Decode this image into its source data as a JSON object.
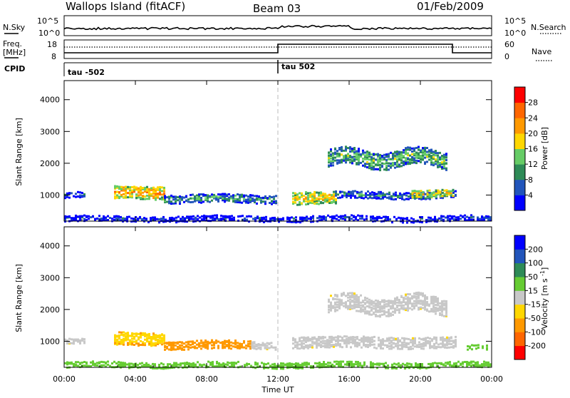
{
  "header": {
    "station": "Wallops Island (fitACF)",
    "beam": "Beam 03",
    "date": "01/Feb/2009"
  },
  "panels": {
    "nsky": {
      "left_label": "N.Sky",
      "right_label": "N.Search",
      "left_ticks": [
        "10^5",
        "10^0"
      ],
      "right_ticks": [
        "10^5",
        "10^0"
      ]
    },
    "freq": {
      "left_label_line1": "Freq.",
      "left_label_line2": "[MHz]",
      "right_label": "Nave",
      "left_ticks": [
        "18",
        "8"
      ],
      "right_ticks": [
        "60",
        "0"
      ]
    },
    "cpid": {
      "label": "CPID",
      "segments": [
        "tau -502",
        "tau 502"
      ]
    }
  },
  "colors": {
    "power_scale": [
      "#0000ff",
      "#2255bb",
      "#2e8b57",
      "#66cc66",
      "#ffd700",
      "#ff9900",
      "#ff6600",
      "#ff0000"
    ],
    "velocity_scale": [
      "#ff0000",
      "#ff6600",
      "#ff9900",
      "#ffd700",
      "#c8c8c8",
      "#66cc33",
      "#2e8b57",
      "#2255bb",
      "#0000ff"
    ],
    "ground_scatter_grey": "#c8c8c8"
  },
  "chart_data": [
    {
      "type": "heatmap",
      "title": "",
      "xlabel": "Time UT",
      "ylabel": "Slant Range [km]",
      "x_ticks": [
        "00:00",
        "04:00",
        "08:00",
        "12:00",
        "16:00",
        "20:00",
        "00:00"
      ],
      "y_ticks": [
        1000,
        2000,
        3000,
        4000
      ],
      "xlim_hours": [
        0,
        24
      ],
      "ylim_km": [
        180,
        4600
      ],
      "colorbar": {
        "label": "Power [dB]",
        "tick_labels": [
          "4",
          "8",
          "12",
          "16",
          "20",
          "24",
          "28"
        ],
        "range": [
          0,
          32
        ]
      },
      "scatter_regions": [
        {
          "t_start": 0.0,
          "t_end": 1.1,
          "range_center": 1000,
          "range_halfwidth": 80,
          "level": 8
        },
        {
          "t_start": 2.8,
          "t_end": 5.6,
          "range_center": 1100,
          "range_halfwidth": 200,
          "level": 22
        },
        {
          "t_start": 5.6,
          "t_end": 11.9,
          "range_center": 880,
          "range_halfwidth": 120,
          "level": 12
        },
        {
          "t_start": 12.8,
          "t_end": 15.2,
          "range_center": 920,
          "range_halfwidth": 200,
          "level": 20
        },
        {
          "t_start": 15.2,
          "t_end": 22.0,
          "range_center": 1000,
          "range_halfwidth": 100,
          "level": 10
        },
        {
          "t_start": 14.8,
          "t_end": 21.5,
          "range_center": 2150,
          "range_halfwidth": 250,
          "level": 14
        },
        {
          "t_start": 19.5,
          "t_end": 21.8,
          "range_center": 1050,
          "range_halfwidth": 120,
          "level": 20
        },
        {
          "t_start": 0.0,
          "t_end": 24.0,
          "range_center": 250,
          "range_halfwidth": 70,
          "level": 6
        }
      ]
    },
    {
      "type": "heatmap",
      "title": "",
      "xlabel": "Time UT",
      "ylabel": "Slant Range [km]",
      "x_ticks": [
        "00:00",
        "04:00",
        "08:00",
        "12:00",
        "16:00",
        "20:00",
        "00:00"
      ],
      "y_ticks": [
        1000,
        2000,
        3000,
        4000
      ],
      "xlim_hours": [
        0,
        24
      ],
      "ylim_km": [
        180,
        4600
      ],
      "colorbar": {
        "label": "Velocity [m s^-1]",
        "tick_labels": [
          "200",
          "100",
          "50",
          "15",
          "-15",
          "-50",
          "-100",
          "-200"
        ],
        "range": [
          -250,
          250
        ]
      },
      "scatter_regions": [
        {
          "t_start": 0.0,
          "t_end": 1.1,
          "range_center": 1000,
          "range_halfwidth": 80,
          "level": 0
        },
        {
          "t_start": 2.8,
          "t_end": 5.6,
          "range_center": 1100,
          "range_halfwidth": 200,
          "level": -40
        },
        {
          "t_start": 5.6,
          "t_end": 10.5,
          "range_center": 880,
          "range_halfwidth": 120,
          "level": -80
        },
        {
          "t_start": 10.5,
          "t_end": 11.9,
          "range_center": 880,
          "range_halfwidth": 100,
          "level": 0
        },
        {
          "t_start": 12.8,
          "t_end": 22.0,
          "range_center": 960,
          "range_halfwidth": 160,
          "level": 0
        },
        {
          "t_start": 14.8,
          "t_end": 21.5,
          "range_center": 2150,
          "range_halfwidth": 250,
          "level": 0
        },
        {
          "t_start": 22.6,
          "t_end": 23.8,
          "range_center": 800,
          "range_halfwidth": 80,
          "level": 30
        },
        {
          "t_start": 0.0,
          "t_end": 24.0,
          "range_center": 250,
          "range_halfwidth": 70,
          "level": 40
        }
      ]
    }
  ]
}
